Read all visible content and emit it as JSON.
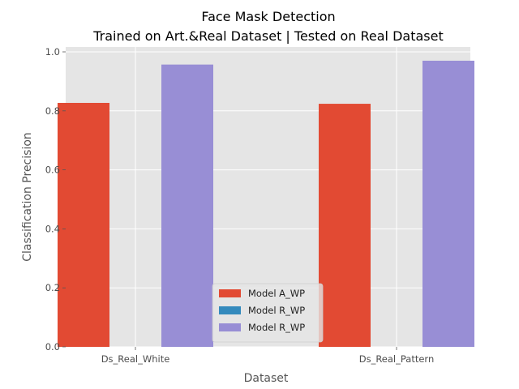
{
  "chart_data": {
    "type": "bar",
    "title": [
      "Face Mask Detection",
      "Trained on Art.&Real Dataset | Tested on Real Dataset"
    ],
    "xlabel": "Dataset",
    "ylabel": "Classification Precision",
    "categories": [
      "Ds_Real_White",
      "Ds_Real_Pattern"
    ],
    "ylim": [
      0,
      1.0
    ],
    "yticks": [
      "0.0",
      "0.2",
      "0.4",
      "0.6",
      "0.8",
      "1.0"
    ],
    "grid": true,
    "legend_position": "bottom-center",
    "series": [
      {
        "name": "Model A_WP",
        "color": "#e24a33",
        "values": [
          0.827,
          0.824
        ]
      },
      {
        "name": "Model R_WP",
        "color": "#348abd",
        "values": [
          0,
          0
        ]
      },
      {
        "name": "Model R_WP",
        "color": "#988ed5",
        "values": [
          0.957,
          0.97
        ]
      }
    ]
  }
}
